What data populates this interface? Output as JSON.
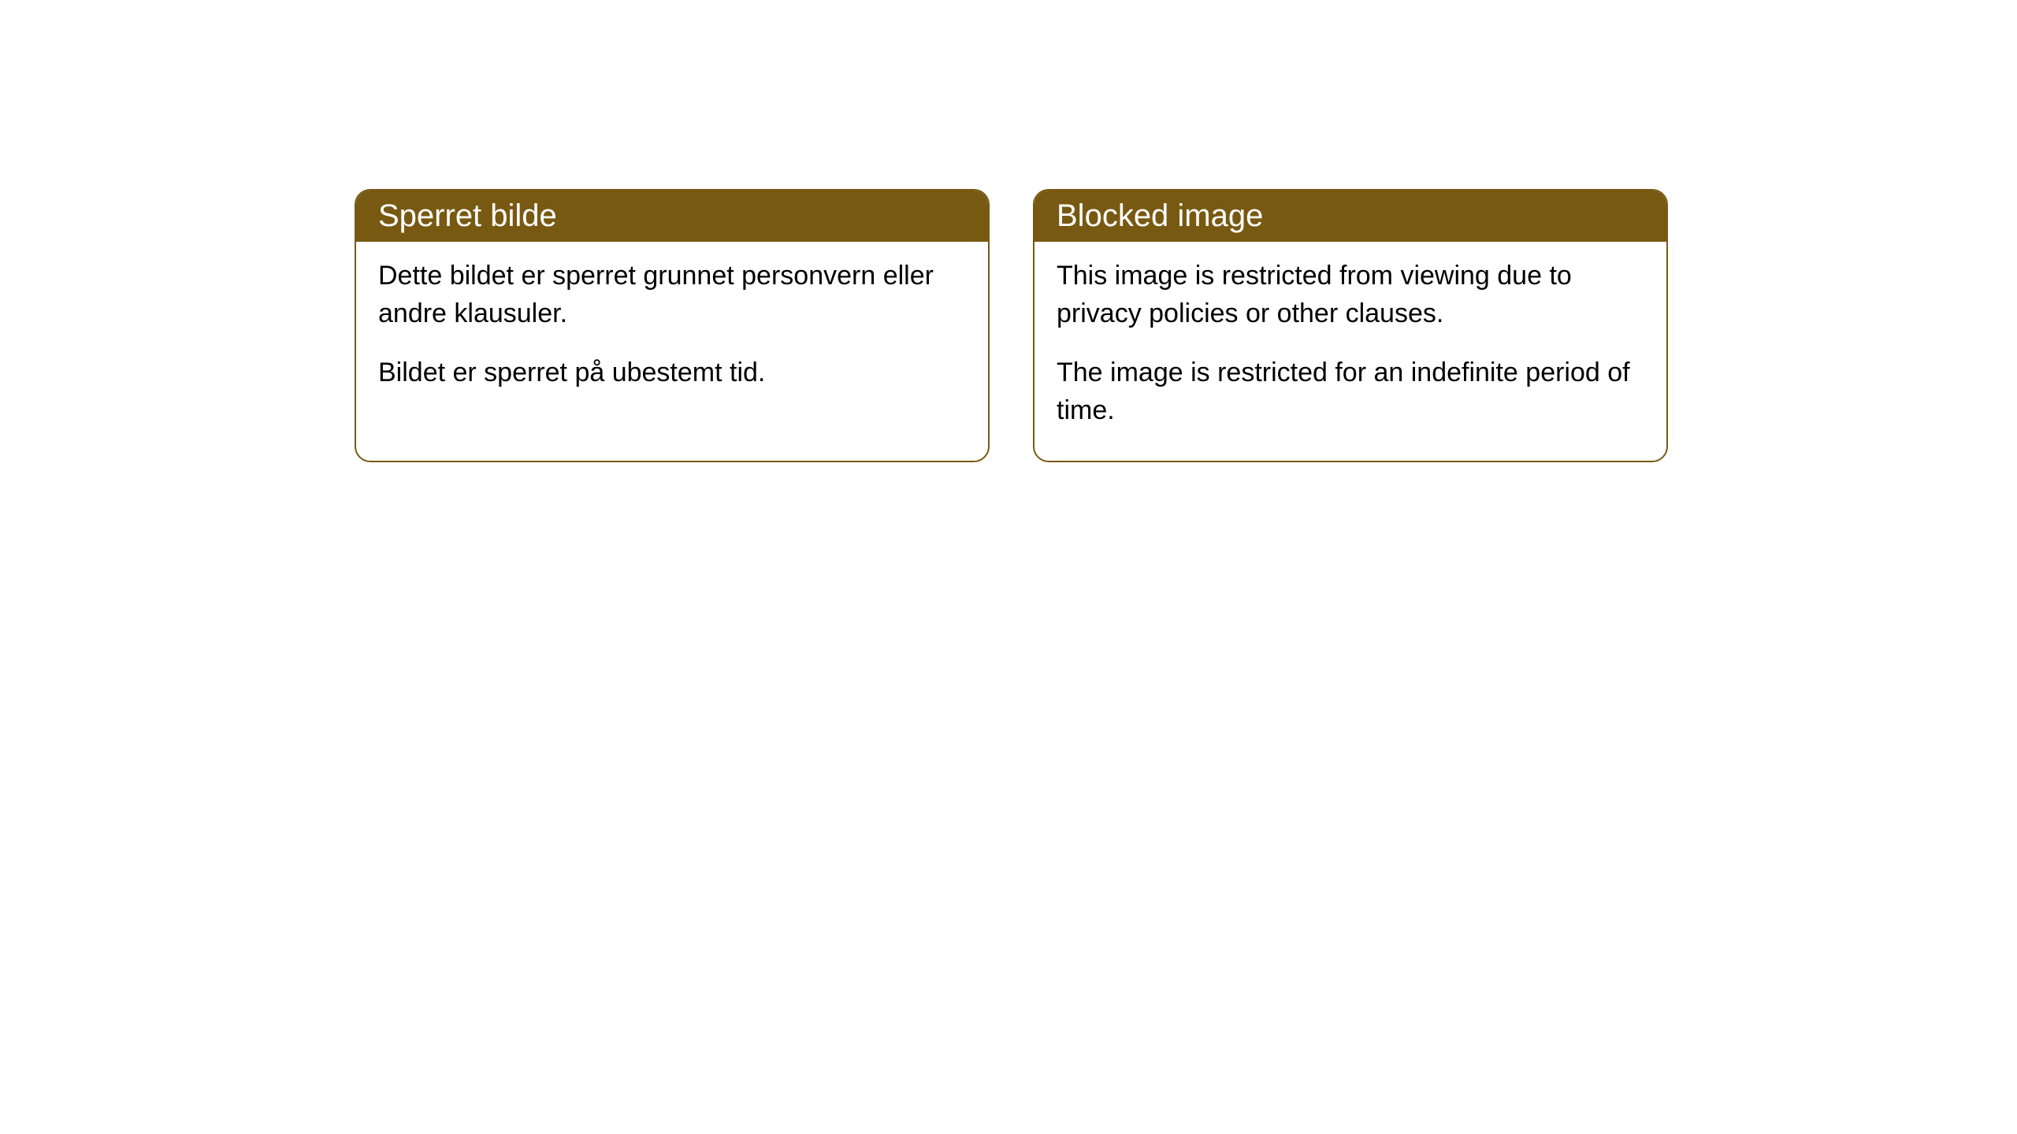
{
  "cards": [
    {
      "title": "Sperret bilde",
      "paragraph1": "Dette bildet er sperret grunnet personvern eller andre klausuler.",
      "paragraph2": "Bildet er sperret på ubestemt tid."
    },
    {
      "title": "Blocked image",
      "paragraph1": "This image is restricted from viewing due to privacy policies or other clauses.",
      "paragraph2": "The image is restricted for an indefinite period of time."
    }
  ],
  "styling": {
    "header_bg_color": "#785912",
    "header_text_color": "#ffffff",
    "border_color": "#785912",
    "body_bg_color": "#ffffff",
    "body_text_color": "#000000",
    "border_radius": 20,
    "header_fontsize": 40,
    "body_fontsize": 34
  }
}
